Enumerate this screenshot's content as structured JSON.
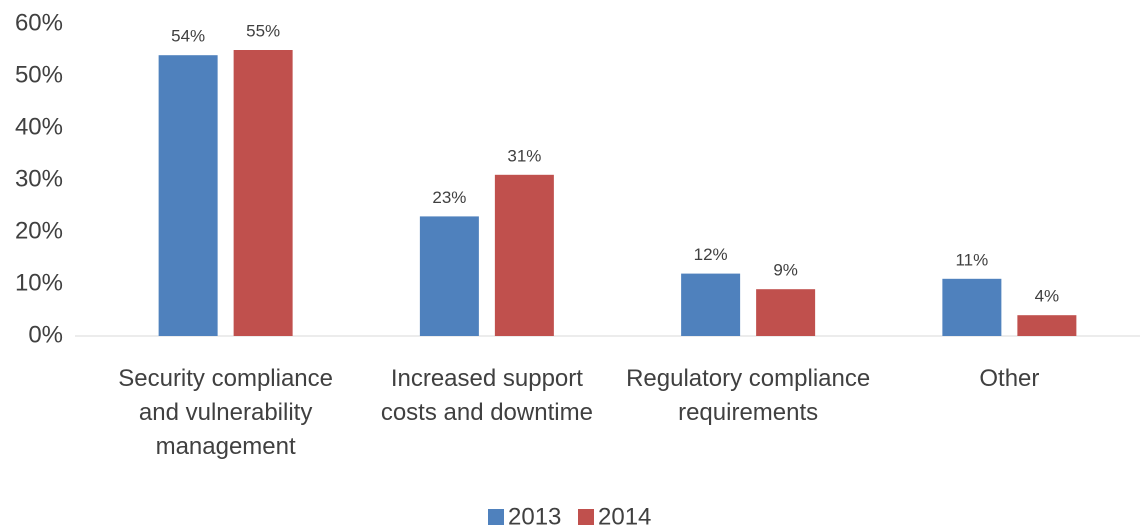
{
  "chart_data": {
    "type": "bar",
    "categories": [
      "Security compliance and vulnerability management",
      "Increased support costs and downtime",
      "Regulatory compliance requirements",
      "Other"
    ],
    "series": [
      {
        "name": "2013",
        "color": "#4f81bd",
        "values": [
          54,
          23,
          12,
          11
        ],
        "value_labels": [
          "54%",
          "23%",
          "12%",
          "11%"
        ]
      },
      {
        "name": "2014",
        "color": "#c0504d",
        "values": [
          55,
          31,
          9,
          4
        ],
        "value_labels": [
          "55%",
          "31%",
          "9%",
          "4%"
        ]
      }
    ],
    "ylim": [
      0,
      60
    ],
    "yticks": [
      {
        "value": 0,
        "label": "0%"
      },
      {
        "value": 10,
        "label": "10%"
      },
      {
        "value": 20,
        "label": "20%"
      },
      {
        "value": 30,
        "label": "30%"
      },
      {
        "value": 40,
        "label": "40%"
      },
      {
        "value": 50,
        "label": "50%"
      },
      {
        "value": 60,
        "label": "60%"
      }
    ],
    "grid": false,
    "legend": "bottom"
  }
}
